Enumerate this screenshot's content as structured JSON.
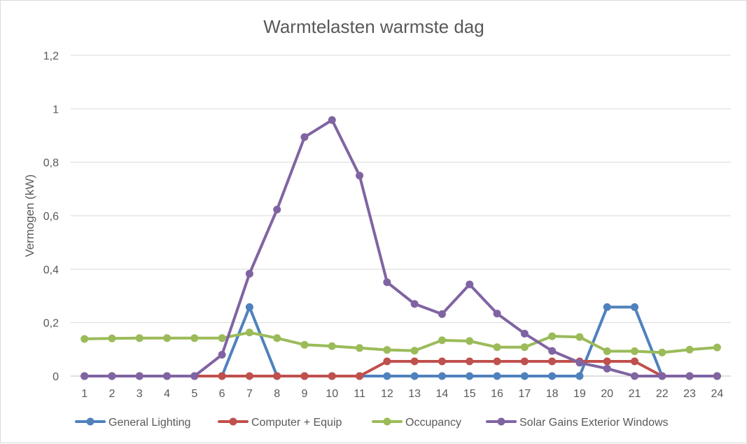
{
  "chart_data": {
    "type": "line",
    "title": "Warmtelasten warmste dag",
    "xlabel": "",
    "ylabel": "Vermogen (kW)",
    "ylim": [
      0,
      1.2
    ],
    "y_ticks": [
      "0",
      "0,2",
      "0,4",
      "0,6",
      "0,8",
      "1",
      "1,2"
    ],
    "categories": [
      "1",
      "2",
      "3",
      "4",
      "5",
      "6",
      "7",
      "8",
      "9",
      "10",
      "11",
      "12",
      "13",
      "14",
      "15",
      "16",
      "17",
      "18",
      "19",
      "20",
      "21",
      "22",
      "23",
      "24"
    ],
    "grid": true,
    "legend_position": "bottom",
    "series": [
      {
        "name": "General Lighting",
        "color": "#4f81bd",
        "values": [
          0,
          0,
          0,
          0,
          0,
          0,
          0.258,
          0,
          0,
          0,
          0,
          0,
          0,
          0,
          0,
          0,
          0,
          0,
          0,
          0.258,
          0.258,
          0,
          0,
          0
        ]
      },
      {
        "name": "Computer + Equip",
        "color": "#c0504d",
        "values": [
          0,
          0,
          0,
          0,
          0,
          0,
          0,
          0,
          0,
          0,
          0,
          0.055,
          0.055,
          0.055,
          0.055,
          0.055,
          0.055,
          0.055,
          0.055,
          0.055,
          0.055,
          0,
          0,
          0
        ]
      },
      {
        "name": "Occupancy",
        "color": "#9bbb59",
        "values": [
          0.139,
          0.141,
          0.142,
          0.142,
          0.142,
          0.142,
          0.163,
          0.142,
          0.117,
          0.112,
          0.105,
          0.098,
          0.095,
          0.134,
          0.131,
          0.108,
          0.108,
          0.149,
          0.146,
          0.093,
          0.093,
          0.088,
          0.099,
          0.107
        ]
      },
      {
        "name": "Solar Gains Exterior Windows",
        "color": "#8064a2",
        "values": [
          0,
          0,
          0,
          0,
          0,
          0.08,
          0.383,
          0.623,
          0.894,
          0.958,
          0.75,
          0.351,
          0.27,
          0.232,
          0.343,
          0.234,
          0.159,
          0.094,
          0.05,
          0.028,
          0,
          0,
          0,
          0
        ]
      }
    ]
  }
}
